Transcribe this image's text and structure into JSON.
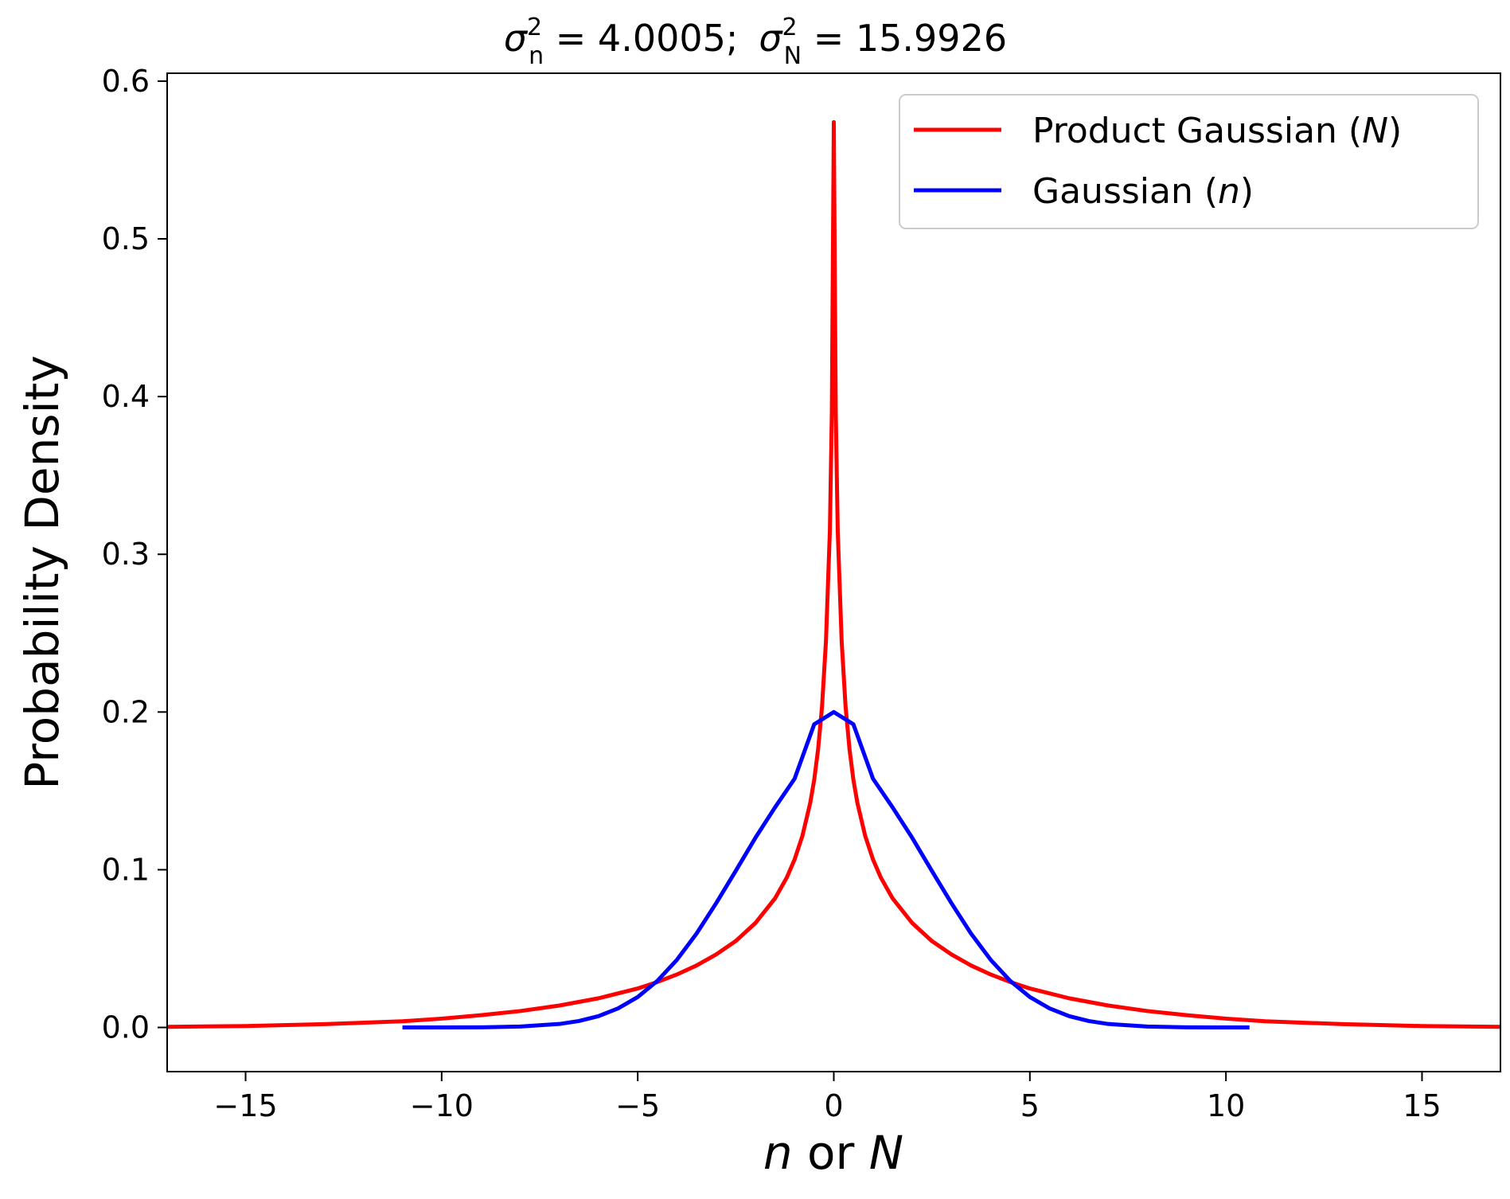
{
  "chart_data": {
    "type": "line",
    "title": {
      "sym1": "σ",
      "sup1": "2",
      "sub1": "n",
      "eq1": " = 4.0005;",
      "sym2": "σ",
      "sup2": "2",
      "sub2": "N",
      "eq2": " = 15.9926"
    },
    "xlabel": {
      "var1": "n",
      "mid": " or ",
      "var2": "N"
    },
    "ylabel": "Probability Density",
    "xlim": [
      -17,
      17
    ],
    "ylim": [
      -0.028,
      0.605
    ],
    "xticks": [
      {
        "value": -15,
        "label": "−15"
      },
      {
        "value": -10,
        "label": "−10"
      },
      {
        "value": -5,
        "label": "−5"
      },
      {
        "value": 0,
        "label": "0"
      },
      {
        "value": 5,
        "label": "5"
      },
      {
        "value": 10,
        "label": "10"
      },
      {
        "value": 15,
        "label": "15"
      }
    ],
    "yticks": [
      {
        "value": 0.0,
        "label": "0.0"
      },
      {
        "value": 0.1,
        "label": "0.1"
      },
      {
        "value": 0.2,
        "label": "0.2"
      },
      {
        "value": 0.3,
        "label": "0.3"
      },
      {
        "value": 0.4,
        "label": "0.4"
      },
      {
        "value": 0.5,
        "label": "0.5"
      },
      {
        "value": 0.6,
        "label": "0.6"
      }
    ],
    "grid": false,
    "legend_position": "top-right",
    "series": [
      {
        "name": "Product Gaussian",
        "name_var": "N",
        "color": "#ff0000",
        "x": [
          -17,
          -15,
          -13,
          -11,
          -10,
          -9,
          -8,
          -7,
          -6,
          -5,
          -4.5,
          -4,
          -3.5,
          -3,
          -2.5,
          -2,
          -1.5,
          -1.2,
          -1,
          -0.8,
          -0.6,
          -0.5,
          -0.4,
          -0.3,
          -0.2,
          -0.1,
          -0.05,
          0,
          0.05,
          0.1,
          0.2,
          0.3,
          0.4,
          0.5,
          0.6,
          0.8,
          1,
          1.2,
          1.5,
          2,
          2.5,
          3,
          3.5,
          4,
          4.5,
          5,
          6,
          7,
          8,
          9,
          10,
          11,
          13,
          15,
          17
        ],
        "values": [
          0.0004,
          0.0009,
          0.0021,
          0.0039,
          0.0056,
          0.0078,
          0.0104,
          0.0139,
          0.0185,
          0.0247,
          0.0288,
          0.0336,
          0.0393,
          0.0463,
          0.0548,
          0.0662,
          0.0818,
          0.095,
          0.1065,
          0.1215,
          0.1425,
          0.157,
          0.1765,
          0.2035,
          0.245,
          0.315,
          0.39,
          0.574,
          0.39,
          0.315,
          0.245,
          0.2035,
          0.1765,
          0.157,
          0.1425,
          0.1215,
          0.1065,
          0.095,
          0.0818,
          0.0662,
          0.0548,
          0.0463,
          0.0393,
          0.0336,
          0.0288,
          0.0247,
          0.0185,
          0.0139,
          0.0104,
          0.0078,
          0.0056,
          0.0039,
          0.0021,
          0.0009,
          0.0004
        ]
      },
      {
        "name": "Gaussian",
        "name_var": "n",
        "color": "#0000ff",
        "x": [
          -11,
          -10,
          -9,
          -8,
          -7,
          -6.5,
          -6,
          -5.5,
          -5,
          -4.5,
          -4,
          -3.5,
          -3,
          -2.5,
          -2,
          -1.5,
          -1,
          -0.5,
          0,
          0.5,
          1,
          1.5,
          2,
          2.5,
          3,
          3.5,
          4,
          4.5,
          5,
          5.5,
          6,
          6.5,
          7,
          8,
          9,
          10,
          10.6
        ],
        "values": [
          0.0,
          0.0,
          0.0001,
          0.0006,
          0.0022,
          0.0041,
          0.0072,
          0.0121,
          0.0193,
          0.0295,
          0.0429,
          0.0595,
          0.0788,
          0.0993,
          0.1202,
          0.1395,
          0.1577,
          0.1922,
          0.2,
          0.1922,
          0.1577,
          0.1395,
          0.1202,
          0.0993,
          0.0788,
          0.0595,
          0.0429,
          0.0295,
          0.0193,
          0.0121,
          0.0072,
          0.0041,
          0.0022,
          0.0006,
          0.0001,
          0.0,
          0.0
        ]
      }
    ]
  }
}
